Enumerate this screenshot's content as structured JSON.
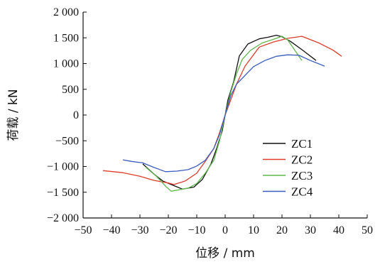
{
  "chart_data": {
    "type": "line",
    "title": "",
    "xlabel": "位移 / mm",
    "ylabel": "荷载 / kN",
    "xlim": [
      -50,
      50
    ],
    "ylim": [
      -2000,
      2000
    ],
    "xticks": [
      -50,
      -40,
      -30,
      -20,
      -10,
      0,
      10,
      20,
      30,
      40,
      50
    ],
    "yticks": [
      -2000,
      -1500,
      -1000,
      -500,
      0,
      500,
      1000,
      1500,
      2000
    ],
    "xtick_labels": [
      "−50",
      "−40",
      "−30",
      "−20",
      "−10",
      "0",
      "10",
      "20",
      "30",
      "40",
      "50"
    ],
    "ytick_labels": [
      "−2 000",
      "−1 500",
      "−1 000",
      "−500",
      "0",
      "500",
      "1 000",
      "1 500",
      "2 000"
    ],
    "grid": false,
    "legend_position": "right",
    "series": [
      {
        "name": "ZC1",
        "color": "#111111",
        "points": [
          [
            -29,
            -950
          ],
          [
            -25,
            -1150
          ],
          [
            -22,
            -1280
          ],
          [
            -19,
            -1350
          ],
          [
            -15,
            -1440
          ],
          [
            -11,
            -1400
          ],
          [
            -8,
            -1250
          ],
          [
            -5,
            -950
          ],
          [
            -3,
            -650
          ],
          [
            -1,
            -300
          ],
          [
            0,
            0
          ],
          [
            1,
            300
          ],
          [
            3,
            650
          ],
          [
            5,
            1150
          ],
          [
            8,
            1380
          ],
          [
            12,
            1480
          ],
          [
            15,
            1510
          ],
          [
            18,
            1550
          ],
          [
            20,
            1520
          ],
          [
            23,
            1430
          ],
          [
            27,
            1270
          ],
          [
            32,
            1060
          ]
        ]
      },
      {
        "name": "ZC2",
        "color": "#e03c2c",
        "points": [
          [
            -43,
            -1080
          ],
          [
            -36,
            -1120
          ],
          [
            -30,
            -1190
          ],
          [
            -25,
            -1270
          ],
          [
            -20,
            -1320
          ],
          [
            -18,
            -1350
          ],
          [
            -14,
            -1280
          ],
          [
            -10,
            -1130
          ],
          [
            -7,
            -900
          ],
          [
            -4,
            -650
          ],
          [
            -2,
            -350
          ],
          [
            0,
            0
          ],
          [
            2,
            300
          ],
          [
            4,
            600
          ],
          [
            7,
            950
          ],
          [
            12,
            1320
          ],
          [
            17,
            1420
          ],
          [
            22,
            1490
          ],
          [
            27,
            1530
          ],
          [
            33,
            1400
          ],
          [
            38,
            1260
          ],
          [
            41,
            1140
          ]
        ]
      },
      {
        "name": "ZC3",
        "color": "#5cb84a",
        "points": [
          [
            -28,
            -1010
          ],
          [
            -24,
            -1200
          ],
          [
            -21,
            -1380
          ],
          [
            -19,
            -1480
          ],
          [
            -16,
            -1450
          ],
          [
            -13,
            -1420
          ],
          [
            -10,
            -1330
          ],
          [
            -7,
            -1130
          ],
          [
            -4,
            -880
          ],
          [
            -2,
            -500
          ],
          [
            0,
            0
          ],
          [
            2,
            450
          ],
          [
            4,
            800
          ],
          [
            6,
            1080
          ],
          [
            9,
            1260
          ],
          [
            13,
            1400
          ],
          [
            17,
            1470
          ],
          [
            20,
            1530
          ],
          [
            22,
            1460
          ],
          [
            24,
            1300
          ],
          [
            27,
            1060
          ]
        ]
      },
      {
        "name": "ZC4",
        "color": "#3a5bbf",
        "points": [
          [
            -36,
            -870
          ],
          [
            -33,
            -900
          ],
          [
            -29,
            -930
          ],
          [
            -25,
            -1020
          ],
          [
            -21,
            -1100
          ],
          [
            -17,
            -1090
          ],
          [
            -13,
            -1060
          ],
          [
            -10,
            -990
          ],
          [
            -7,
            -880
          ],
          [
            -4,
            -650
          ],
          [
            -2,
            -380
          ],
          [
            0,
            0
          ],
          [
            2,
            380
          ],
          [
            4,
            600
          ],
          [
            7,
            770
          ],
          [
            10,
            940
          ],
          [
            14,
            1060
          ],
          [
            18,
            1140
          ],
          [
            22,
            1170
          ],
          [
            26,
            1160
          ],
          [
            30,
            1060
          ],
          [
            35,
            950
          ]
        ]
      }
    ]
  }
}
